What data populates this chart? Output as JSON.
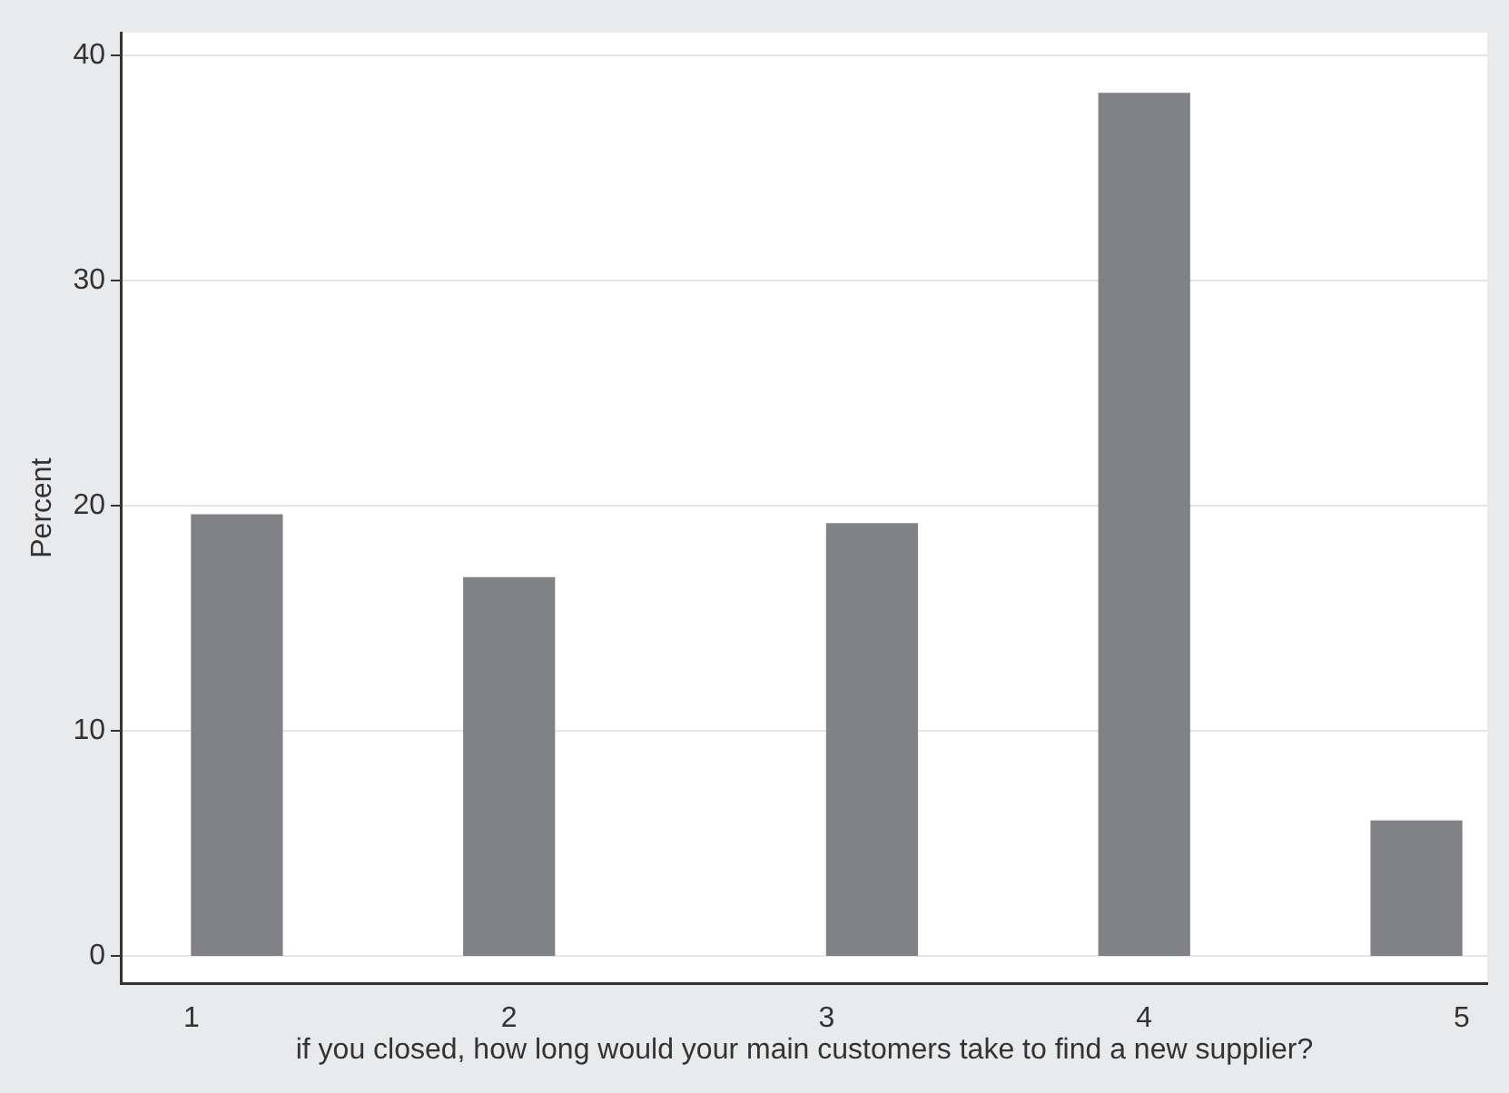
{
  "chart_data": {
    "type": "histogram",
    "xlabel": "if you closed, how long would your main customers take to find a new supplier?",
    "ylabel": "Percent",
    "bins": [
      1,
      1.2857,
      1.5714,
      1.8571,
      2.1429,
      2.4286,
      2.7143,
      3,
      3.2857,
      3.5714,
      3.8571,
      4.1429,
      4.4286,
      4.7143,
      5
    ],
    "values": [
      19.6,
      0,
      0,
      16.8,
      0,
      0,
      0,
      19.2,
      0,
      0,
      38.3,
      0,
      0,
      6.0
    ],
    "color": "#808285",
    "xlim": [
      0.78,
      5.08
    ],
    "xticks": [
      1,
      2,
      3,
      4,
      5
    ],
    "ylim": [
      -1.2,
      41
    ],
    "yticks": [
      0,
      10,
      20,
      30,
      40
    ],
    "grid": "y",
    "legend": false
  }
}
